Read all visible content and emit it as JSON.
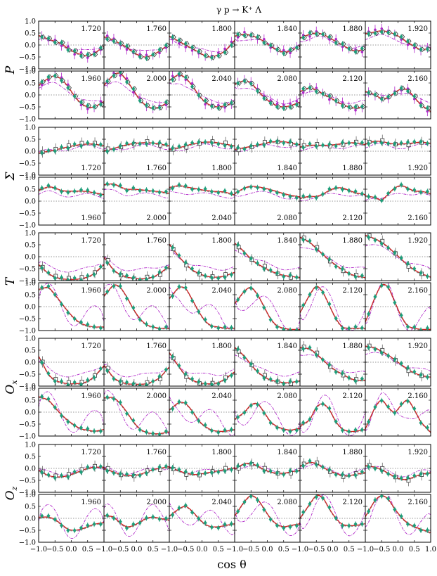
{
  "chart_data": {
    "type": "scatter",
    "title": "γ p → K⁺ Λ",
    "xlabel": "cos θ",
    "xlim": [
      -1,
      1
    ],
    "ylim": [
      -1,
      1
    ],
    "x_ticks": [
      "−1.0",
      "−0.5",
      "0.0",
      "0.5",
      "1.0"
    ],
    "y_ticks": [
      "1.0",
      "0.5",
      "0.0",
      "−0.5",
      "−1.0"
    ],
    "energies": [
      "1.720",
      "1.760",
      "1.800",
      "1.840",
      "1.880",
      "1.920",
      "1.960",
      "2.000",
      "2.040",
      "2.080",
      "2.120",
      "2.160"
    ],
    "observables": [
      {
        "label": "P",
        "sub": ""
      },
      {
        "label": "Σ",
        "sub": ""
      },
      {
        "label": "T",
        "sub": ""
      },
      {
        "label": "O",
        "sub": "x"
      },
      {
        "label": "O",
        "sub": "z"
      }
    ],
    "x": [
      -0.9,
      -0.7,
      -0.5,
      -0.3,
      -0.1,
      0.1,
      0.3,
      0.5,
      0.7,
      0.9
    ],
    "series_styles": [
      {
        "marker": "filled-diamond",
        "color": "#1f9e7a"
      },
      {
        "marker": "open-square",
        "color": "#333333"
      },
      {
        "marker": "open-diamond",
        "color": "#333333"
      },
      {
        "marker": "filled-circle",
        "color": "#b026c8"
      },
      {
        "line": "solid",
        "color": "#cc2222"
      },
      {
        "line": "dashed",
        "color": "#7f7f7f"
      },
      {
        "line": "dash-dot",
        "color": "#b026c8"
      }
    ],
    "panels": {
      "P": [
        [
          0.35,
          0.25,
          0.15,
          0.05,
          -0.15,
          -0.3,
          -0.4,
          -0.45,
          -0.35,
          -0.15
        ],
        [
          0.3,
          0.2,
          0.05,
          -0.1,
          -0.3,
          -0.45,
          -0.5,
          -0.4,
          -0.25,
          -0.05
        ],
        [
          0.3,
          0.15,
          0.0,
          -0.15,
          -0.3,
          -0.45,
          -0.5,
          -0.4,
          -0.25,
          0.05
        ],
        [
          0.4,
          0.45,
          0.4,
          0.3,
          0.15,
          -0.05,
          -0.2,
          -0.3,
          -0.25,
          -0.1
        ],
        [
          0.35,
          0.45,
          0.5,
          0.45,
          0.3,
          0.15,
          0.0,
          -0.15,
          -0.25,
          -0.2
        ],
        [
          0.5,
          0.55,
          0.6,
          0.55,
          0.45,
          0.3,
          0.1,
          -0.05,
          -0.2,
          -0.15
        ],
        [
          0.5,
          0.7,
          0.8,
          0.65,
          0.35,
          -0.05,
          -0.35,
          -0.5,
          -0.5,
          -0.35
        ],
        [
          0.55,
          0.85,
          0.9,
          0.6,
          0.2,
          -0.2,
          -0.45,
          -0.55,
          -0.5,
          -0.35
        ],
        [
          0.7,
          0.85,
          0.7,
          0.4,
          0.0,
          -0.3,
          -0.45,
          -0.5,
          -0.45,
          -0.35
        ],
        [
          0.5,
          0.6,
          0.5,
          0.2,
          -0.1,
          -0.3,
          -0.45,
          -0.5,
          -0.45,
          -0.35
        ],
        [
          0.2,
          0.3,
          0.2,
          0.05,
          -0.1,
          -0.25,
          -0.4,
          -0.5,
          -0.55,
          -0.5
        ],
        [
          0.1,
          0.0,
          -0.15,
          -0.1,
          0.1,
          0.25,
          0.2,
          -0.1,
          -0.4,
          -0.6
        ]
      ],
      "Sigma": [
        [
          -0.05,
          0.0,
          0.05,
          0.12,
          0.18,
          0.24,
          0.28,
          0.3,
          0.3,
          0.25
        ],
        [
          0.05,
          0.12,
          0.2,
          0.27,
          0.32,
          0.35,
          0.36,
          0.34,
          0.3,
          0.25
        ],
        [
          0.1,
          0.15,
          0.22,
          0.3,
          0.35,
          0.38,
          0.38,
          0.35,
          0.3,
          0.25
        ],
        [
          0.1,
          0.15,
          0.2,
          0.25,
          0.32,
          0.38,
          0.4,
          0.4,
          0.35,
          0.3
        ],
        [
          0.2,
          0.25,
          0.25,
          0.25,
          0.25,
          0.28,
          0.32,
          0.35,
          0.35,
          0.3
        ],
        [
          0.35,
          0.42,
          0.4,
          0.35,
          0.3,
          0.3,
          0.32,
          0.35,
          0.38,
          0.35
        ],
        [
          0.5,
          0.6,
          0.55,
          0.45,
          0.42,
          0.42,
          0.42,
          0.4,
          0.35,
          0.3
        ],
        [
          0.7,
          0.72,
          0.6,
          0.5,
          0.5,
          0.48,
          0.45,
          0.42,
          0.4,
          0.35
        ],
        [
          0.6,
          0.65,
          0.6,
          0.55,
          0.5,
          0.45,
          0.42,
          0.4,
          0.38,
          0.3
        ],
        [
          0.4,
          0.55,
          0.62,
          0.6,
          0.55,
          0.48,
          0.4,
          0.32,
          0.25,
          0.2
        ],
        [
          0.15,
          0.2,
          0.2,
          0.3,
          0.45,
          0.55,
          0.55,
          0.45,
          0.35,
          0.3
        ],
        [
          0.2,
          0.15,
          0.05,
          0.3,
          0.55,
          0.65,
          0.55,
          0.42,
          0.42,
          0.35
        ]
      ],
      "T": [
        [
          -0.45,
          -0.7,
          -0.85,
          -0.92,
          -0.95,
          -0.95,
          -0.92,
          -0.85,
          -0.7,
          -0.45
        ],
        [
          -0.2,
          -0.55,
          -0.75,
          -0.85,
          -0.9,
          -0.92,
          -0.9,
          -0.85,
          -0.7,
          -0.5
        ],
        [
          0.35,
          0.0,
          -0.3,
          -0.55,
          -0.7,
          -0.8,
          -0.85,
          -0.85,
          -0.8,
          -0.7
        ],
        [
          0.45,
          0.2,
          -0.1,
          -0.3,
          -0.45,
          -0.6,
          -0.7,
          -0.78,
          -0.82,
          -0.85
        ],
        [
          0.75,
          0.6,
          0.35,
          0.1,
          -0.15,
          -0.35,
          -0.55,
          -0.7,
          -0.8,
          -0.85
        ],
        [
          0.85,
          0.75,
          0.6,
          0.4,
          0.15,
          -0.1,
          -0.35,
          -0.55,
          -0.7,
          -0.8
        ],
        [
          0.75,
          0.8,
          0.5,
          0.15,
          -0.2,
          -0.5,
          -0.7,
          -0.8,
          -0.85,
          -0.85
        ],
        [
          0.6,
          0.9,
          0.8,
          0.4,
          -0.1,
          -0.5,
          -0.75,
          -0.85,
          -0.9,
          -0.9
        ],
        [
          0.5,
          0.8,
          0.75,
          0.3,
          -0.2,
          -0.6,
          -0.8,
          -0.85,
          -0.9,
          -0.9
        ],
        [
          0.3,
          0.65,
          0.8,
          0.5,
          0.0,
          -0.5,
          -0.8,
          -0.9,
          -0.95,
          -0.95
        ],
        [
          0.0,
          0.5,
          0.85,
          0.6,
          0.05,
          -0.5,
          -0.85,
          -0.9,
          -0.9,
          -0.9
        ],
        [
          -0.3,
          0.4,
          0.9,
          0.8,
          0.2,
          -0.4,
          -0.8,
          -0.9,
          -0.95,
          -0.95
        ]
      ],
      "Ox": [
        [
          0.0,
          -0.5,
          -0.75,
          -0.85,
          -0.9,
          -0.9,
          -0.88,
          -0.8,
          -0.6,
          -0.3
        ],
        [
          -0.3,
          -0.65,
          -0.82,
          -0.9,
          -0.92,
          -0.92,
          -0.9,
          -0.8,
          -0.65,
          -0.35
        ],
        [
          0.2,
          -0.2,
          -0.55,
          -0.75,
          -0.85,
          -0.9,
          -0.9,
          -0.85,
          -0.7,
          -0.5
        ],
        [
          0.5,
          0.25,
          -0.1,
          -0.4,
          -0.6,
          -0.75,
          -0.8,
          -0.85,
          -0.85,
          -0.8
        ],
        [
          0.6,
          0.55,
          0.35,
          0.1,
          -0.15,
          -0.35,
          -0.5,
          -0.65,
          -0.75,
          -0.75
        ],
        [
          0.65,
          0.6,
          0.45,
          0.3,
          0.1,
          -0.1,
          -0.3,
          -0.45,
          -0.55,
          -0.6
        ],
        [
          0.6,
          0.5,
          0.2,
          -0.1,
          -0.35,
          -0.55,
          -0.7,
          -0.75,
          -0.8,
          -0.75
        ],
        [
          0.6,
          0.6,
          0.35,
          0.0,
          -0.4,
          -0.7,
          -0.85,
          -0.9,
          -0.9,
          -0.85
        ],
        [
          0.2,
          0.4,
          0.35,
          0.05,
          -0.35,
          -0.6,
          -0.75,
          -0.8,
          -0.8,
          -0.75
        ],
        [
          -0.2,
          0.0,
          0.3,
          0.35,
          0.0,
          -0.4,
          -0.6,
          -0.7,
          -0.75,
          -0.7
        ],
        [
          -0.5,
          -0.3,
          0.2,
          0.35,
          0.1,
          -0.4,
          -0.7,
          -0.8,
          -0.8,
          -0.75
        ],
        [
          -0.4,
          0.2,
          0.5,
          0.2,
          0.0,
          0.3,
          0.5,
          0.1,
          -0.4,
          -0.7
        ]
      ],
      "Oz": [
        [
          -0.15,
          -0.3,
          -0.35,
          -0.35,
          -0.3,
          -0.2,
          -0.1,
          0.0,
          0.05,
          0.05
        ],
        [
          -0.05,
          -0.15,
          -0.25,
          -0.3,
          -0.3,
          -0.25,
          -0.15,
          -0.05,
          0.0,
          0.05
        ],
        [
          0.0,
          -0.1,
          -0.2,
          -0.25,
          -0.25,
          -0.2,
          -0.15,
          -0.1,
          -0.05,
          0.0
        ],
        [
          0.05,
          0.2,
          0.2,
          0.1,
          -0.05,
          -0.15,
          -0.2,
          -0.2,
          -0.15,
          -0.1
        ],
        [
          0.15,
          0.25,
          0.2,
          0.05,
          -0.1,
          -0.2,
          -0.3,
          -0.3,
          -0.25,
          -0.2
        ],
        [
          0.1,
          0.05,
          -0.05,
          -0.2,
          -0.35,
          -0.45,
          -0.45,
          -0.35,
          -0.25,
          -0.2
        ],
        [
          0.05,
          0.05,
          -0.05,
          -0.25,
          -0.45,
          -0.5,
          -0.45,
          -0.35,
          -0.25,
          -0.2
        ],
        [
          0.1,
          0.05,
          -0.2,
          -0.35,
          -0.3,
          -0.15,
          0.0,
          0.05,
          0.0,
          -0.05
        ],
        [
          0.2,
          0.4,
          0.5,
          0.3,
          0.0,
          -0.25,
          -0.35,
          -0.35,
          -0.3,
          -0.25
        ],
        [
          0.3,
          0.7,
          0.95,
          0.8,
          0.4,
          0.0,
          -0.25,
          -0.35,
          -0.3,
          -0.25
        ],
        [
          0.2,
          0.6,
          0.95,
          0.85,
          0.4,
          0.0,
          -0.25,
          -0.3,
          -0.3,
          -0.25
        ],
        [
          0.3,
          0.75,
          0.95,
          0.8,
          0.4,
          0.05,
          -0.2,
          -0.35,
          -0.45,
          -0.55
        ]
      ]
    }
  }
}
